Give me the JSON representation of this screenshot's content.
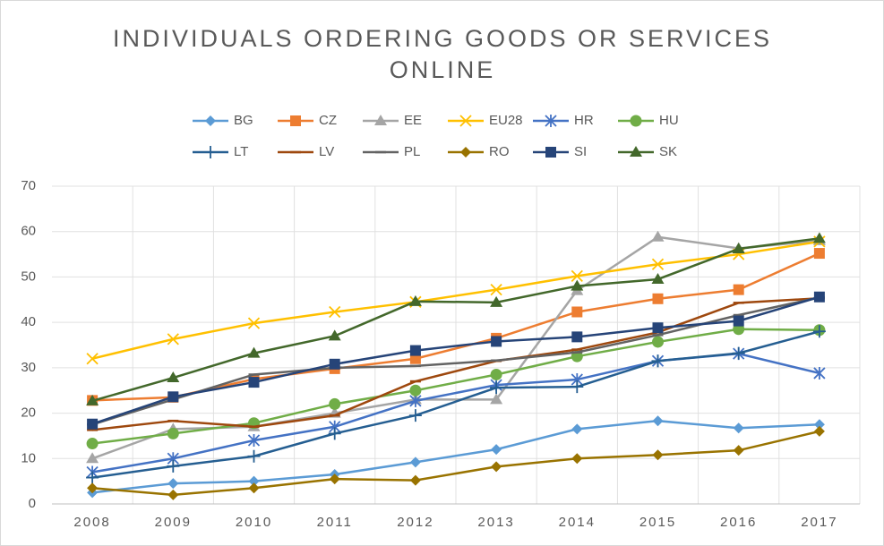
{
  "chart_data": {
    "type": "line",
    "title": "INDIVIDUALS ORDERING GOODS OR SERVICES ONLINE",
    "categories": [
      "2008",
      "2009",
      "2010",
      "2011",
      "2012",
      "2013",
      "2014",
      "2015",
      "2016",
      "2017"
    ],
    "ylim": [
      0,
      70
    ],
    "yticks": [
      0,
      10,
      20,
      30,
      40,
      50,
      60,
      70
    ],
    "grid": true,
    "legend": "top",
    "series": [
      {
        "name": "BG",
        "color": "#5b9bd5",
        "marker": "diamond",
        "values": [
          2.5,
          4.5,
          5,
          6.5,
          9.2,
          12,
          16.5,
          18.3,
          16.7,
          17.5
        ]
      },
      {
        "name": "CZ",
        "color": "#ed7d31",
        "marker": "square",
        "values": [
          22.8,
          23.5,
          27.5,
          29.8,
          32,
          36.5,
          42.3,
          45.2,
          47.2,
          55.2
        ]
      },
      {
        "name": "EE",
        "color": "#a5a5a5",
        "marker": "triangle",
        "values": [
          10,
          16.5,
          17,
          20,
          23,
          23,
          47,
          58.8,
          56.3,
          58
        ]
      },
      {
        "name": "EU28",
        "color": "#ffc000",
        "marker": "x",
        "values": [
          32,
          36.3,
          39.8,
          42.3,
          44.5,
          47.2,
          50.2,
          52.8,
          55,
          57.8
        ]
      },
      {
        "name": "HR",
        "color": "#4472c4",
        "marker": "star",
        "values": [
          7,
          10,
          14,
          17,
          22.7,
          26.2,
          27.4,
          31.5,
          33.1,
          28.8
        ]
      },
      {
        "name": "HU",
        "color": "#70ad47",
        "marker": "circle",
        "values": [
          13.3,
          15.5,
          17.8,
          22,
          25,
          28.5,
          32.5,
          35.7,
          38.5,
          38.3
        ]
      },
      {
        "name": "LT",
        "color": "#255e91",
        "marker": "plus",
        "values": [
          5.8,
          8.3,
          10.5,
          15.5,
          19.5,
          25.6,
          25.8,
          31.5,
          33.2,
          38
        ]
      },
      {
        "name": "LV",
        "color": "#9e480e",
        "marker": "dash",
        "values": [
          16.3,
          18.3,
          17,
          19.5,
          27,
          31.5,
          34,
          37.8,
          44.3,
          45.3
        ]
      },
      {
        "name": "PL",
        "color": "#636363",
        "marker": "dash",
        "values": [
          17.5,
          23,
          28.5,
          30,
          30.4,
          31.6,
          33.4,
          37.2,
          41.6,
          45.5
        ]
      },
      {
        "name": "RO",
        "color": "#997300",
        "marker": "diamond",
        "values": [
          3.5,
          2,
          3.5,
          5.5,
          5.2,
          8.2,
          10,
          10.8,
          11.8,
          16
        ]
      },
      {
        "name": "SI",
        "color": "#264478",
        "marker": "square",
        "values": [
          17.6,
          23.6,
          26.8,
          30.8,
          33.8,
          35.8,
          36.8,
          38.8,
          40.3,
          45.6
        ]
      },
      {
        "name": "SK",
        "color": "#43682b",
        "marker": "triangle",
        "values": [
          22.7,
          27.8,
          33.2,
          37,
          44.6,
          44.4,
          48,
          49.5,
          56.2,
          58.5
        ]
      }
    ]
  }
}
